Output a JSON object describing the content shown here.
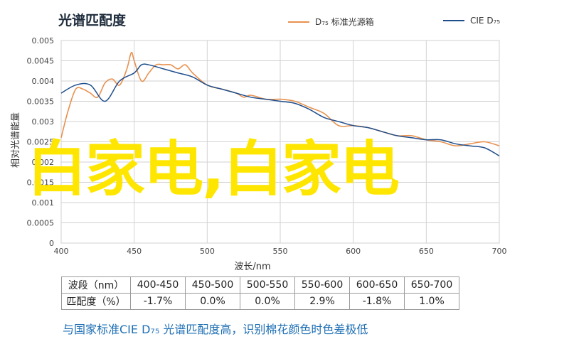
{
  "chart_data": {
    "type": "line",
    "title": "光谱匹配度",
    "xlabel": "波长/nm",
    "ylabel": "相对光谱能量",
    "xlim": [
      400,
      700
    ],
    "ylim": [
      0,
      0.005
    ],
    "xticks": [
      400,
      450,
      500,
      550,
      600,
      650,
      700
    ],
    "yticks": [
      0,
      0.0005,
      0.001,
      0.0015,
      0.002,
      0.0025,
      0.003,
      0.0035,
      0.004,
      0.0045,
      0.005
    ],
    "ytick_labels": [
      "0",
      "0.0005",
      "0.001",
      "0.0015",
      "0.002",
      "0.0025",
      "0.003",
      "0.0035",
      "0.004",
      "0.0045",
      "0.005"
    ],
    "grid": true,
    "legend_position": "top",
    "series": [
      {
        "name": "D₇₅ 标准光源箱",
        "color": "#e8914f",
        "x": [
          400,
          405,
          410,
          415,
          420,
          425,
          430,
          435,
          440,
          445,
          448,
          450,
          455,
          460,
          465,
          470,
          475,
          480,
          485,
          490,
          500,
          510,
          520,
          525,
          530,
          540,
          550,
          560,
          570,
          580,
          590,
          600,
          610,
          620,
          630,
          640,
          650,
          660,
          670,
          680,
          690,
          700
        ],
        "y": [
          0.0026,
          0.0033,
          0.0038,
          0.0038,
          0.0037,
          0.0036,
          0.00395,
          0.00405,
          0.0039,
          0.0043,
          0.0047,
          0.0045,
          0.004,
          0.0042,
          0.0044,
          0.0044,
          0.0044,
          0.0043,
          0.0044,
          0.0042,
          0.0039,
          0.0038,
          0.0037,
          0.0036,
          0.00365,
          0.00355,
          0.00355,
          0.0035,
          0.00335,
          0.0032,
          0.0029,
          0.0029,
          0.00285,
          0.00275,
          0.00265,
          0.00265,
          0.00255,
          0.0025,
          0.0024,
          0.00245,
          0.0025,
          0.0024
        ]
      },
      {
        "name": "CIE D₇₅",
        "color": "#1f4e8c",
        "x": [
          400,
          410,
          420,
          430,
          440,
          450,
          455,
          460,
          470,
          480,
          490,
          500,
          510,
          520,
          530,
          540,
          550,
          560,
          570,
          580,
          590,
          600,
          610,
          620,
          630,
          640,
          650,
          660,
          670,
          680,
          690,
          700
        ],
        "y": [
          0.0037,
          0.0039,
          0.0039,
          0.0035,
          0.004,
          0.0042,
          0.0044,
          0.0044,
          0.0043,
          0.0042,
          0.0041,
          0.0039,
          0.0038,
          0.0037,
          0.0036,
          0.00355,
          0.0035,
          0.00345,
          0.0033,
          0.0031,
          0.003,
          0.0029,
          0.00285,
          0.00275,
          0.00265,
          0.0026,
          0.00255,
          0.00255,
          0.00245,
          0.0024,
          0.00235,
          0.00215
        ]
      }
    ]
  },
  "overlay_text": "白家电,白家电",
  "table": {
    "header_label": "波段（nm）",
    "row_label": "匹配度（%）",
    "bands": [
      "400-450",
      "450-500",
      "500-550",
      "550-600",
      "600-650",
      "650-700"
    ],
    "values": [
      "-1.7%",
      "0.0%",
      "0.0%",
      "2.9%",
      "-1.8%",
      "1.0%"
    ]
  },
  "footer_text": "与国家标准CIE D₇₅ 光谱匹配度高，识别棉花颜色时色差极低"
}
